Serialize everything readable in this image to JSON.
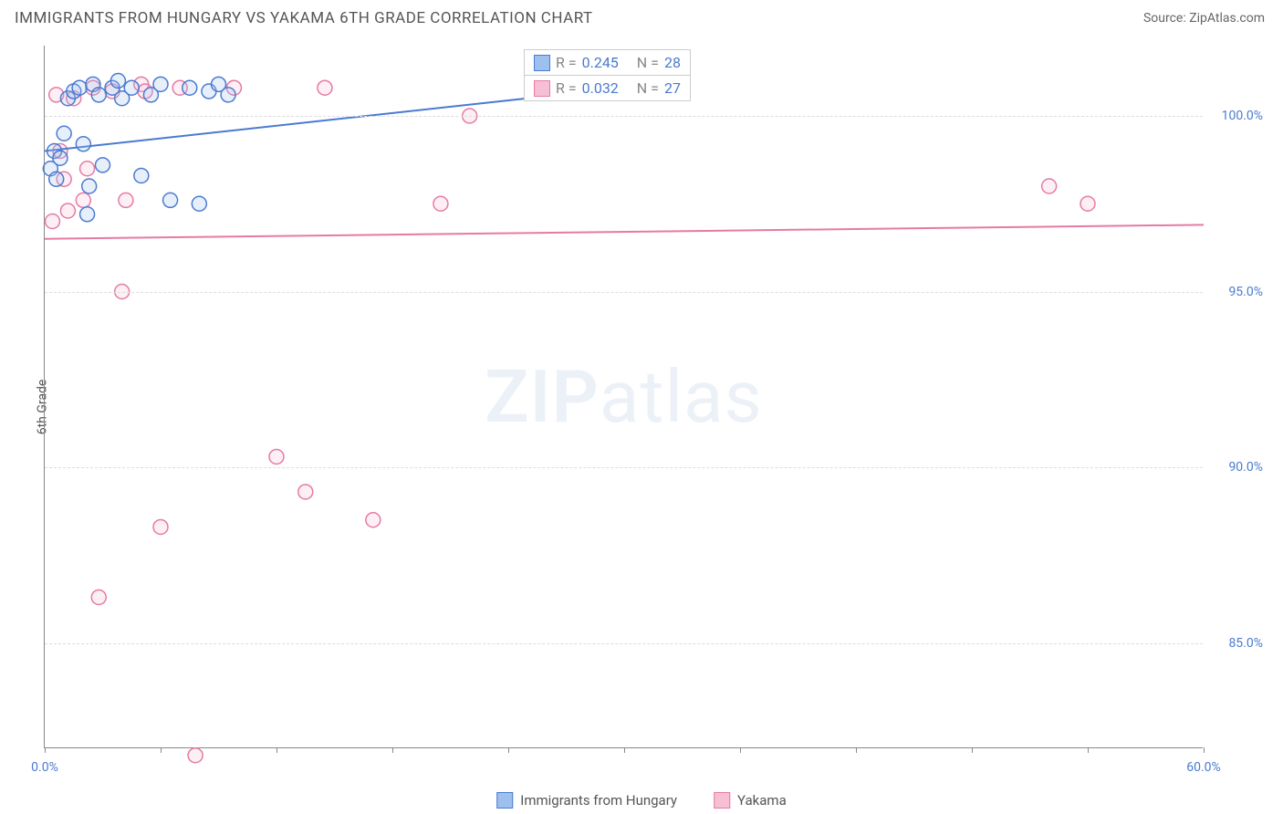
{
  "title": "IMMIGRANTS FROM HUNGARY VS YAKAMA 6TH GRADE CORRELATION CHART",
  "source": "Source: ZipAtlas.com",
  "watermark_a": "ZIP",
  "watermark_b": "atlas",
  "y_axis_label": "6th Grade",
  "chart": {
    "type": "scatter",
    "x_range": [
      0,
      60
    ],
    "y_range": [
      82,
      102
    ],
    "x_ticks": [
      0,
      6,
      12,
      18,
      24,
      30,
      36,
      42,
      48,
      54,
      60
    ],
    "x_tick_labels": {
      "0": "0.0%",
      "60": "60.0%"
    },
    "y_ticks": [
      85,
      90,
      95,
      100
    ],
    "y_tick_labels": {
      "85": "85.0%",
      "90": "90.0%",
      "95": "95.0%",
      "100": "100.0%"
    },
    "background_color": "#ffffff",
    "grid_color": "#dddddd",
    "axis_color": "#888888",
    "marker_radius": 8,
    "marker_stroke_width": 1.5,
    "marker_fill_opacity": 0.25,
    "line_width": 2,
    "series": [
      {
        "name": "Immigrants from Hungary",
        "color_stroke": "#4a7bd0",
        "color_fill": "#9ec0ef",
        "R": "0.245",
        "N": "28",
        "trend": {
          "x1": 0,
          "y1": 99.0,
          "x2": 30,
          "y2": 100.8
        },
        "points": [
          [
            0.3,
            98.5
          ],
          [
            0.5,
            99.0
          ],
          [
            0.6,
            98.2
          ],
          [
            0.8,
            98.8
          ],
          [
            1.0,
            99.5
          ],
          [
            1.2,
            100.5
          ],
          [
            1.5,
            100.7
          ],
          [
            1.8,
            100.8
          ],
          [
            2.0,
            99.2
          ],
          [
            2.3,
            98.0
          ],
          [
            2.5,
            100.9
          ],
          [
            2.8,
            100.6
          ],
          [
            3.0,
            98.6
          ],
          [
            3.5,
            100.8
          ],
          [
            3.8,
            101.0
          ],
          [
            4.0,
            100.5
          ],
          [
            4.5,
            100.8
          ],
          [
            5.0,
            98.3
          ],
          [
            5.5,
            100.6
          ],
          [
            6.0,
            100.9
          ],
          [
            6.5,
            97.6
          ],
          [
            7.5,
            100.8
          ],
          [
            8.0,
            97.5
          ],
          [
            8.5,
            100.7
          ],
          [
            9.0,
            100.9
          ],
          [
            9.5,
            100.6
          ],
          [
            29.8,
            100.9
          ],
          [
            2.2,
            97.2
          ]
        ]
      },
      {
        "name": "Yakama",
        "color_stroke": "#e67aa5",
        "color_fill": "#f7bfd4",
        "R": "0.032",
        "N": "27",
        "trend": {
          "x1": 0,
          "y1": 96.5,
          "x2": 60,
          "y2": 96.9
        },
        "points": [
          [
            0.4,
            97.0
          ],
          [
            0.8,
            99.0
          ],
          [
            1.2,
            97.3
          ],
          [
            1.5,
            100.5
          ],
          [
            2.0,
            97.6
          ],
          [
            2.5,
            100.8
          ],
          [
            2.8,
            86.3
          ],
          [
            3.5,
            100.7
          ],
          [
            4.0,
            95.0
          ],
          [
            4.2,
            97.6
          ],
          [
            5.0,
            100.9
          ],
          [
            5.2,
            100.7
          ],
          [
            6.0,
            88.3
          ],
          [
            7.0,
            100.8
          ],
          [
            7.8,
            81.8
          ],
          [
            9.8,
            100.8
          ],
          [
            12.0,
            90.3
          ],
          [
            13.5,
            89.3
          ],
          [
            14.5,
            100.8
          ],
          [
            17.0,
            88.5
          ],
          [
            20.5,
            97.5
          ],
          [
            22.0,
            100.0
          ],
          [
            52.0,
            98.0
          ],
          [
            54.0,
            97.5
          ],
          [
            1.0,
            98.2
          ],
          [
            2.2,
            98.5
          ],
          [
            0.6,
            100.6
          ]
        ]
      }
    ]
  },
  "legend_top": {
    "R_label": "R =",
    "N_label": "N ="
  },
  "legend_bottom": {
    "series1": "Immigrants from Hungary",
    "series2": "Yakama"
  }
}
